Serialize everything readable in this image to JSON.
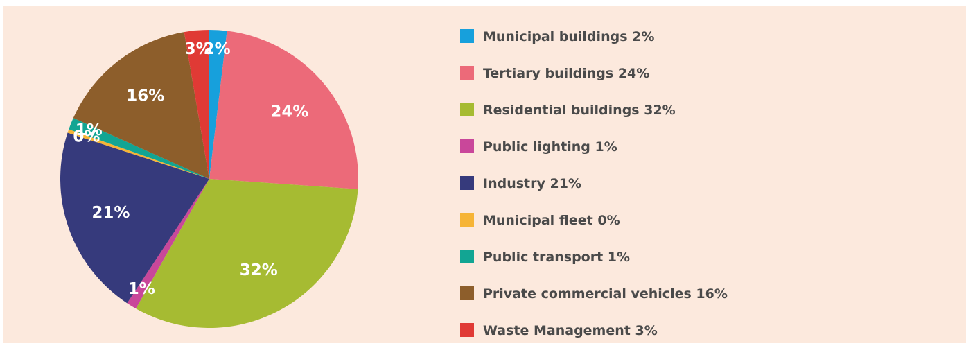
{
  "chart_data": {
    "type": "pie",
    "categories": [
      "Municipal buildings",
      "Tertiary buildings",
      "Residential buildings",
      "Public lighting",
      "Industry",
      "Municipal fleet",
      "Public transport",
      "Private commercial vehicles",
      "Waste Management"
    ],
    "values": [
      1.9,
      24.2,
      32.1,
      1.1,
      20.7,
      0.4,
      1.3,
      15.6,
      2.7
    ],
    "value_labels": [
      "2%",
      "24%",
      "32%",
      "1%",
      "21%",
      "0%",
      "1%",
      "16%",
      "3%"
    ],
    "colors": [
      "#17a0dc",
      "#ec6a79",
      "#a6bb32",
      "#c9479a",
      "#363a7c",
      "#f6b436",
      "#12a593",
      "#8d5e2b",
      "#e03a35"
    ],
    "legend": "right"
  }
}
